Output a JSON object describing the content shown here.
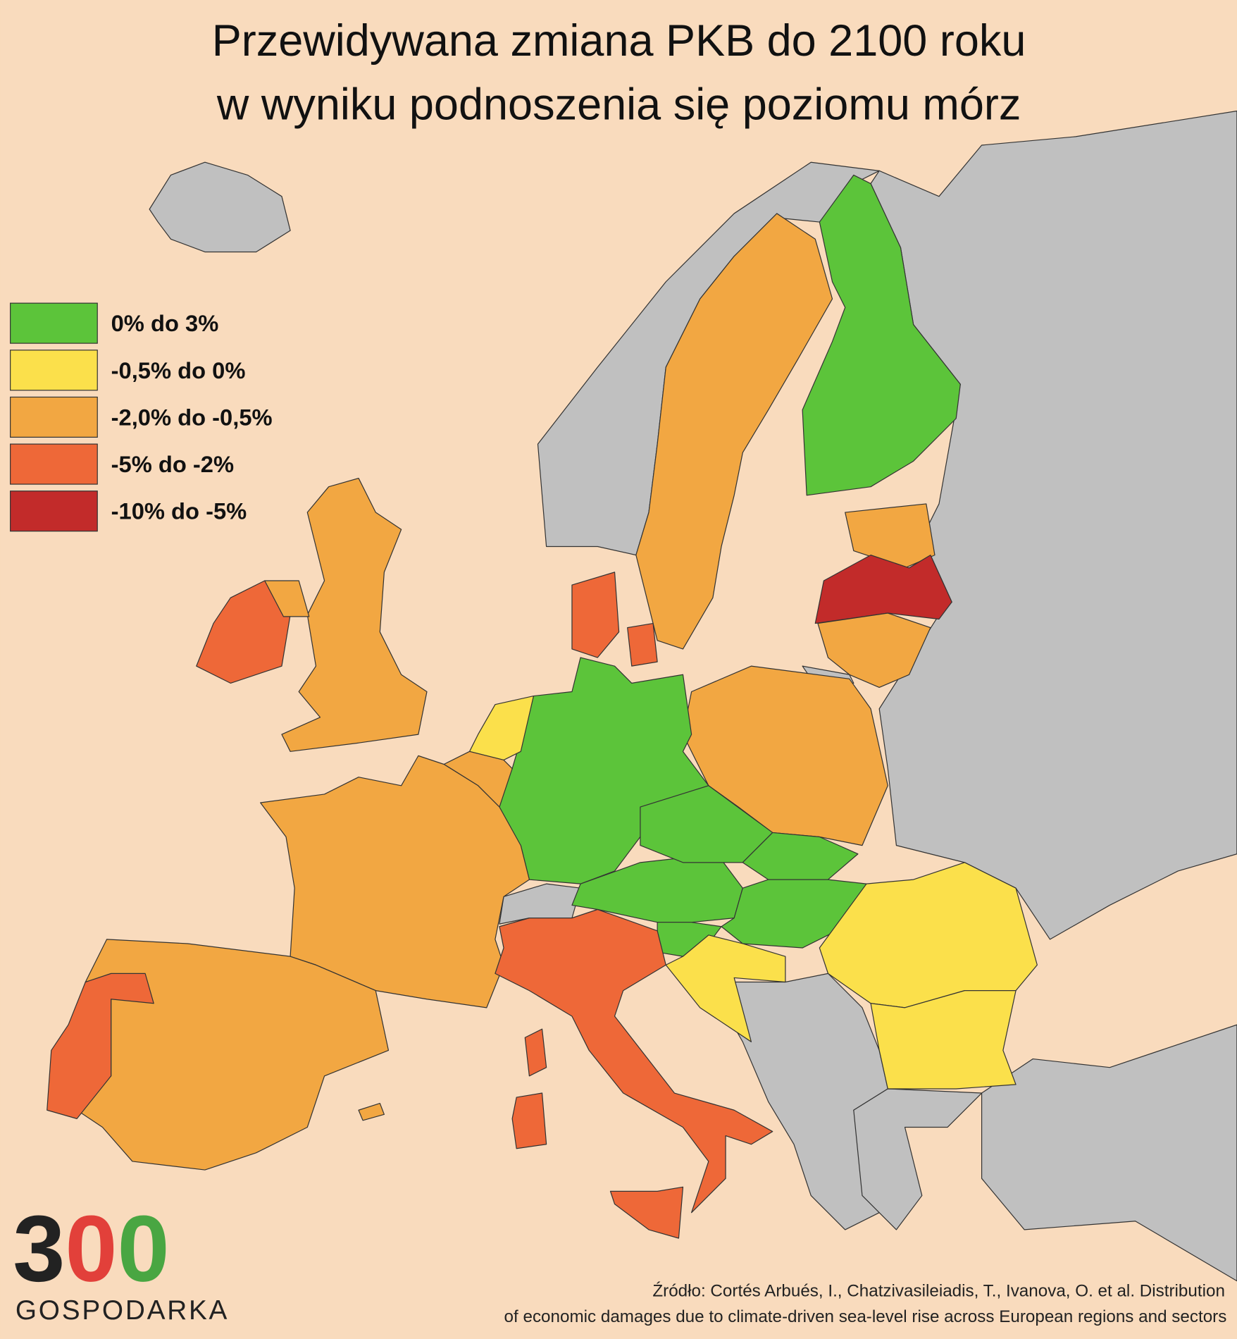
{
  "header": {
    "title_lines": [
      "Przewidywana zmiana PKB do 2100 roku",
      "w wyniku podnoszenia się poziomu mórz"
    ]
  },
  "legend": [
    {
      "label": "0% do 3%",
      "color": "#5cc43a"
    },
    {
      "label": "-0,5% do 0%",
      "color": "#fbe04b"
    },
    {
      "label": "-2,0% do -0,5%",
      "color": "#f2a742"
    },
    {
      "label": "-5% do -2%",
      "color": "#ee6838"
    },
    {
      "label": "-10% do -5%",
      "color": "#c22b2a"
    }
  ],
  "source_lines": [
    "Źródło: Cortés Arbués, I., Chatzivasileiadis, T., Ivanova, O. et al. Distribution",
    "of economic damages due to climate-driven sea-level rise across European regions and sectors"
  ],
  "logo": {
    "number": "300",
    "name": "GOSPODARKA"
  }
}
